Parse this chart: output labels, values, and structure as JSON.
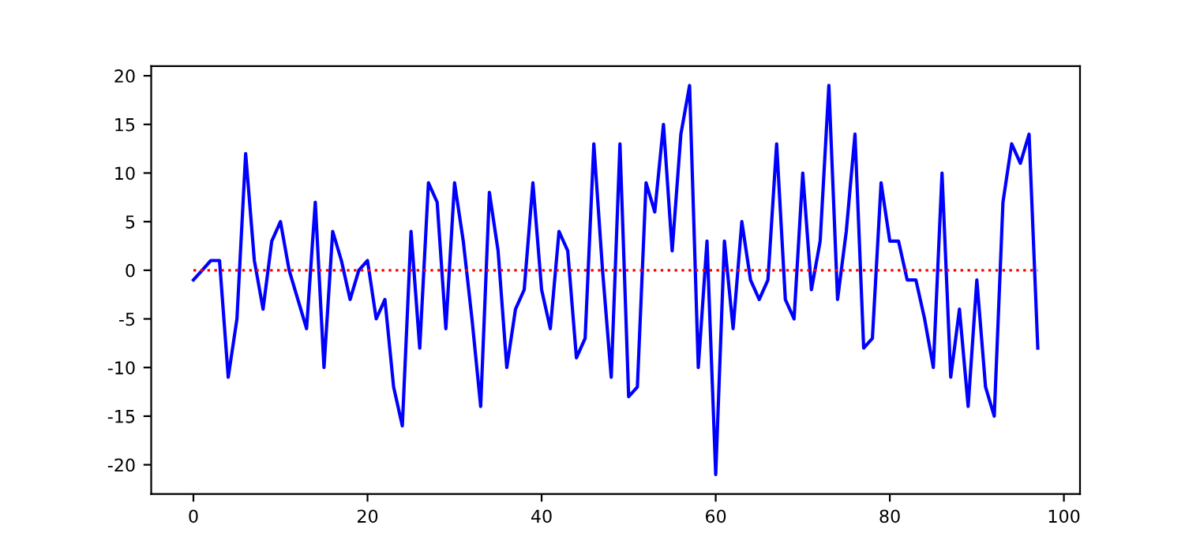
{
  "chart_data": {
    "type": "line",
    "x": [
      0,
      1,
      2,
      3,
      4,
      5,
      6,
      7,
      8,
      9,
      10,
      11,
      12,
      13,
      14,
      15,
      16,
      17,
      18,
      19,
      20,
      21,
      22,
      23,
      24,
      25,
      26,
      27,
      28,
      29,
      30,
      31,
      32,
      33,
      34,
      35,
      36,
      37,
      38,
      39,
      40,
      41,
      42,
      43,
      44,
      45,
      46,
      47,
      48,
      49,
      50,
      51,
      52,
      53,
      54,
      55,
      56,
      57,
      58,
      59,
      60,
      61,
      62,
      63,
      64,
      65,
      66,
      67,
      68,
      69,
      70,
      71,
      72,
      73,
      74,
      75,
      76,
      77,
      78,
      79,
      80,
      81,
      82,
      83,
      84,
      85,
      86,
      87,
      88,
      89,
      90,
      91,
      92,
      93,
      94,
      95,
      96,
      97
    ],
    "series": [
      {
        "color": "#0000ff",
        "values": [
          -1,
          0,
          1,
          1,
          -11,
          -5,
          12,
          1,
          -4,
          3,
          5,
          0,
          -3,
          -6,
          7,
          -10,
          4,
          1,
          -3,
          0,
          1,
          -5,
          -3,
          -12,
          -16,
          4,
          -8,
          9,
          7,
          -6,
          9,
          3,
          -5,
          -14,
          8,
          2,
          -10,
          -4,
          -2,
          9,
          -2,
          -6,
          4,
          2,
          -9,
          -7,
          13,
          0,
          -11,
          13,
          -13,
          -12,
          9,
          6,
          15,
          2,
          14,
          19,
          -10,
          3,
          -21,
          3,
          -6,
          5,
          -1,
          -3,
          -1,
          13,
          -3,
          -5,
          10,
          -2,
          3,
          19,
          -3,
          4,
          14,
          -8,
          -7,
          9,
          3,
          3,
          -1,
          -1,
          -5,
          -10,
          10,
          -11,
          -4,
          -14,
          -1,
          -12,
          -15,
          7,
          13,
          11,
          14,
          -8
        ]
      }
    ],
    "ref_lines": [
      {
        "axis": "y",
        "value": 0,
        "color": "#ff0000",
        "line_style": "dotted"
      }
    ],
    "xlim": [
      -4.85,
      101.85
    ],
    "ylim": [
      -23,
      21
    ],
    "xticks": [
      0,
      20,
      40,
      60,
      80,
      100
    ],
    "yticks": [
      -20,
      -15,
      -10,
      -5,
      0,
      5,
      10,
      15,
      20
    ],
    "grid": false,
    "legend": false
  }
}
